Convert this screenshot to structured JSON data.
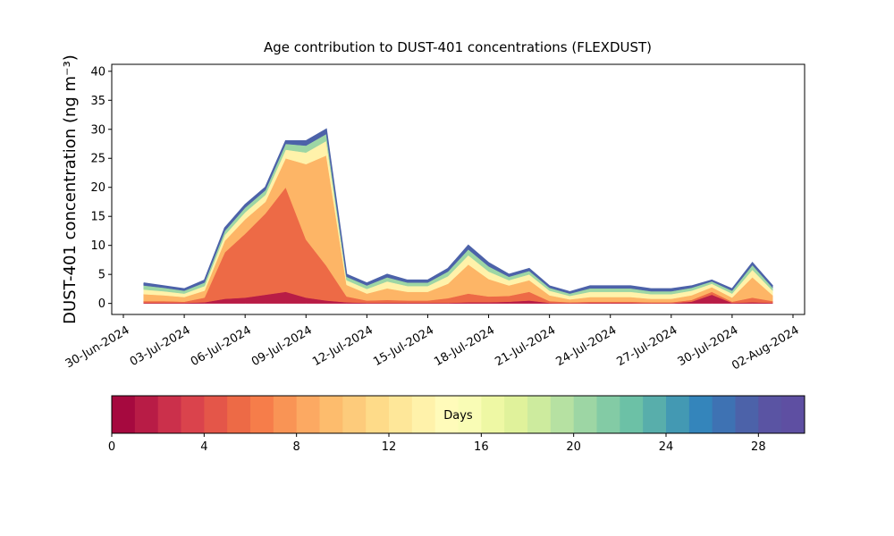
{
  "chart_data": {
    "type": "stackedarea",
    "title": "Age contribution to DUST-401 concentrations (FLEXDUST)",
    "y_label": "DUST-401 concentration (ng m⁻³)",
    "x": [
      "2024-07-01",
      "2024-07-02",
      "2024-07-03",
      "2024-07-04",
      "2024-07-05",
      "2024-07-06",
      "2024-07-07",
      "2024-07-08",
      "2024-07-09",
      "2024-07-10",
      "2024-07-11",
      "2024-07-12",
      "2024-07-13",
      "2024-07-14",
      "2024-07-15",
      "2024-07-16",
      "2024-07-17",
      "2024-07-18",
      "2024-07-19",
      "2024-07-20",
      "2024-07-21",
      "2024-07-22",
      "2024-07-23",
      "2024-07-24",
      "2024-07-25",
      "2024-07-26",
      "2024-07-27",
      "2024-07-28",
      "2024-07-29",
      "2024-07-30",
      "2024-07-31",
      "2024-08-01"
    ],
    "series": [
      {
        "color": "#b81c46",
        "values": [
          0.1,
          0.1,
          0.1,
          0.2,
          0.8,
          1,
          1.5,
          2,
          1,
          0.5,
          0.2,
          0.1,
          0.1,
          0.1,
          0.1,
          0.1,
          0.2,
          0.2,
          0.3,
          0.5,
          0.1,
          0.05,
          0.1,
          0.1,
          0.1,
          0.05,
          0.05,
          0.3,
          1.5,
          0.1,
          0.2,
          0.1
        ]
      },
      {
        "color": "#ed6a46",
        "values": [
          0.3,
          0.3,
          0.2,
          0.8,
          8,
          11,
          14,
          18,
          10,
          6,
          1,
          0.4,
          0.5,
          0.4,
          0.4,
          0.8,
          1.5,
          1,
          1,
          1.5,
          0.3,
          0.15,
          0.2,
          0.2,
          0.2,
          0.15,
          0.15,
          0.3,
          0.5,
          0.2,
          0.8,
          0.3
        ]
      },
      {
        "color": "#fdb566",
        "values": [
          1.2,
          1,
          0.8,
          1.2,
          2,
          2.5,
          2,
          5,
          13,
          19,
          2,
          1.2,
          2,
          1.5,
          1.5,
          2.5,
          5,
          3,
          1.8,
          2,
          1,
          0.5,
          0.8,
          0.8,
          0.8,
          0.6,
          0.6,
          0.8,
          0.8,
          0.7,
          3.5,
          1
        ]
      },
      {
        "color": "#fff2aa",
        "values": [
          0.8,
          0.7,
          0.6,
          0.8,
          1,
          1.2,
          1.2,
          1.5,
          2,
          2.5,
          0.8,
          0.8,
          1.2,
          1,
          1,
          1.3,
          1.6,
          1.3,
          0.9,
          1,
          0.8,
          0.6,
          0.9,
          0.9,
          0.9,
          0.8,
          0.8,
          0.8,
          0.6,
          0.7,
          1.3,
          0.8
        ]
      },
      {
        "color": "#9dd6a4",
        "values": [
          0.7,
          0.6,
          0.5,
          0.6,
          0.7,
          0.8,
          0.8,
          1,
          1.2,
          1.2,
          0.6,
          0.6,
          0.7,
          0.6,
          0.6,
          0.8,
          1,
          0.9,
          0.6,
          0.6,
          0.5,
          0.4,
          0.6,
          0.6,
          0.6,
          0.5,
          0.5,
          0.5,
          0.4,
          0.5,
          0.8,
          0.5
        ]
      },
      {
        "color": "#4c62a9",
        "values": [
          0.4,
          0.3,
          0.3,
          0.4,
          0.5,
          0.5,
          0.5,
          0.5,
          0.8,
          0.8,
          0.4,
          0.4,
          0.5,
          0.4,
          0.4,
          0.5,
          0.7,
          0.6,
          0.4,
          0.4,
          0.3,
          0.3,
          0.4,
          0.4,
          0.4,
          0.4,
          0.4,
          0.3,
          0.2,
          0.3,
          0.4,
          0.3
        ]
      }
    ],
    "xlim": [
      "2024-06-30",
      "2024-08-02"
    ],
    "xticks": [
      {
        "value": "2024-06-30",
        "label": "30-Jun-2024"
      },
      {
        "value": "2024-07-03",
        "label": "03-Jul-2024"
      },
      {
        "value": "2024-07-06",
        "label": "06-Jul-2024"
      },
      {
        "value": "2024-07-09",
        "label": "09-Jul-2024"
      },
      {
        "value": "2024-07-12",
        "label": "12-Jul-2024"
      },
      {
        "value": "2024-07-15",
        "label": "15-Jul-2024"
      },
      {
        "value": "2024-07-18",
        "label": "18-Jul-2024"
      },
      {
        "value": "2024-07-21",
        "label": "21-Jul-2024"
      },
      {
        "value": "2024-07-24",
        "label": "24-Jul-2024"
      },
      {
        "value": "2024-07-27",
        "label": "27-Jul-2024"
      },
      {
        "value": "2024-07-30",
        "label": "30-Jul-2024"
      },
      {
        "value": "2024-08-02",
        "label": "02-Aug-2024"
      }
    ],
    "ylim": [
      -1.9,
      41.2
    ],
    "yticks": [
      0,
      5,
      10,
      15,
      20,
      25,
      30,
      35,
      40
    ],
    "colorbar": {
      "label": "Days",
      "lim": [
        0,
        30
      ],
      "ticks": [
        0,
        4,
        8,
        12,
        16,
        20,
        24,
        28
      ],
      "colors": [
        "#a6093f",
        "#b81c46",
        "#cb304b",
        "#da434c",
        "#e45649",
        "#ed6a46",
        "#f67d4a",
        "#f99455",
        "#fca962",
        "#fdbc6d",
        "#fdcb7b",
        "#fedb89",
        "#fee799",
        "#fff2aa",
        "#fffbba",
        "#f9fcb5",
        "#eef8a4",
        "#e0f29b",
        "#cdeb9e",
        "#b6e1a2",
        "#9dd6a4",
        "#83cba5",
        "#6cc1a6",
        "#58aeab",
        "#4399b3",
        "#3485bb",
        "#3e72b3",
        "#4c62a9",
        "#5a54a3",
        "#5e4fa2"
      ]
    }
  }
}
